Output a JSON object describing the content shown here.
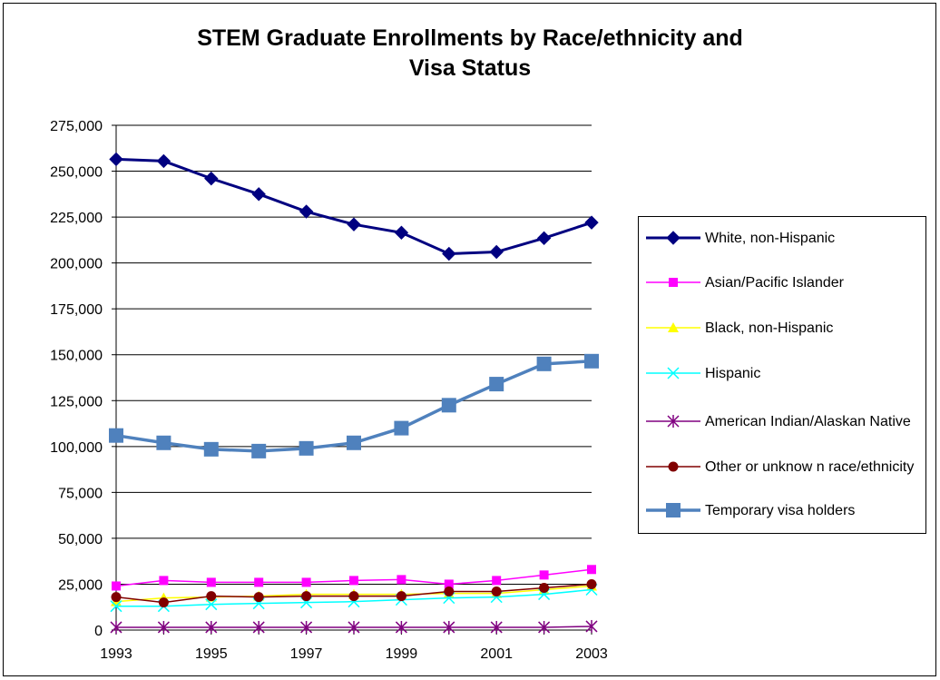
{
  "chart_data": {
    "type": "line",
    "title": "STEM Graduate Enrollments by Race/ethnicity and\nVisa Status",
    "x": [
      1993,
      1994,
      1995,
      1996,
      1997,
      1998,
      1999,
      2000,
      2001,
      2002,
      2003
    ],
    "x_tick_labels": [
      "1993",
      "1995",
      "1997",
      "1999",
      "2001",
      "2003"
    ],
    "x_tick_values": [
      1993,
      1995,
      1997,
      1999,
      2001,
      2003
    ],
    "y_tick_labels": [
      "0",
      "25,000",
      "50,000",
      "75,000",
      "100,000",
      "125,000",
      "150,000",
      "175,000",
      "200,000",
      "225,000",
      "250,000",
      "275,000"
    ],
    "ylim": [
      0,
      275000
    ],
    "grid": true,
    "legend_position": "right",
    "series": [
      {
        "name": "White, non-Hispanic",
        "color": "#000080",
        "marker": "diamond",
        "values": [
          256500,
          255500,
          246000,
          237500,
          228000,
          221000,
          216500,
          205000,
          206000,
          213500,
          222000
        ]
      },
      {
        "name": "Asian/Pacific Islander",
        "color": "#ff00ff",
        "marker": "square",
        "values": [
          24000,
          27000,
          26000,
          26000,
          26000,
          27000,
          27500,
          25000,
          27000,
          30000,
          33000
        ]
      },
      {
        "name": "Black, non-Hispanic",
        "color": "#ffff00",
        "marker": "triangle",
        "values": [
          15500,
          17500,
          18000,
          18500,
          19500,
          19500,
          19500,
          20000,
          20000,
          22000,
          24000
        ]
      },
      {
        "name": "Hispanic",
        "color": "#00ffff",
        "marker": "x",
        "values": [
          13000,
          13000,
          14000,
          14500,
          15000,
          15500,
          16500,
          17500,
          18000,
          19500,
          22000
        ]
      },
      {
        "name": "American Indian/Alaskan Native",
        "color": "#800080",
        "marker": "star",
        "values": [
          1500,
          1500,
          1500,
          1500,
          1500,
          1500,
          1500,
          1500,
          1500,
          1500,
          2000
        ]
      },
      {
        "name": "Other or unknow n race/ethnicity",
        "color": "#800000",
        "marker": "circle",
        "values": [
          18000,
          15000,
          18500,
          18000,
          18500,
          18500,
          18500,
          21000,
          21000,
          23000,
          25000
        ]
      },
      {
        "name": "Temporary visa holders",
        "color": "#4f81bd",
        "marker": "bigsquare",
        "values": [
          106000,
          102000,
          98500,
          97500,
          99000,
          102000,
          110000,
          122500,
          134000,
          145000,
          146500
        ]
      }
    ]
  }
}
